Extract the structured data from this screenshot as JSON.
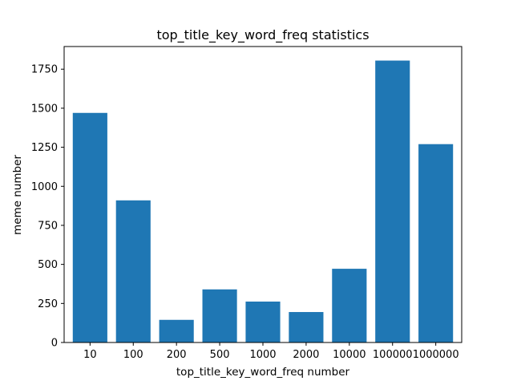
{
  "chart_data": {
    "type": "bar",
    "title": "top_title_key_word_freq statistics",
    "xlabel": "top_title_key_word_freq number",
    "ylabel": "meme number",
    "categories": [
      "10",
      "100",
      "200",
      "500",
      "1000",
      "2000",
      "10000",
      "100000",
      "1000000"
    ],
    "values": [
      1470,
      910,
      145,
      340,
      262,
      195,
      472,
      1805,
      1270
    ],
    "ylim": [
      0,
      1895
    ],
    "yticks": [
      0,
      250,
      500,
      750,
      1000,
      1250,
      1500,
      1750
    ],
    "ytick_labels": [
      "0",
      "250",
      "500",
      "750",
      "1000",
      "1250",
      "1500",
      "1750"
    ],
    "grid": false,
    "legend": "none",
    "colors": {
      "bar": "#1f77b4",
      "axes": "#000000",
      "background": "#ffffff"
    }
  }
}
